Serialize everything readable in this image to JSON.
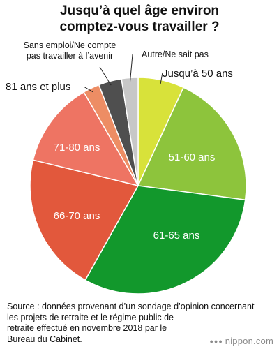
{
  "chart_data": {
    "type": "pie",
    "title_lines": [
      "Jusqu’à quel âge environ",
      "comptez-vous travailler ?"
    ],
    "slices": [
      {
        "label": "Jusqu’à 50 ans",
        "value": 7.0,
        "color": "#d8e23a"
      },
      {
        "label": "51-60 ans",
        "value": 20.5,
        "color": "#8dc43c"
      },
      {
        "label": "61-65 ans",
        "value": 31.5,
        "color": "#12982c"
      },
      {
        "label": "66-70 ans",
        "value": 21.0,
        "color": "#e2583c"
      },
      {
        "label": "71-80 ans",
        "value": 13.0,
        "color": "#ee7463"
      },
      {
        "label": "81 ans et plus",
        "value": 2.5,
        "color": "#ed8d64"
      },
      {
        "label": "Sans emploi/Ne compte pas travailler à l’avenir",
        "value": 3.5,
        "color": "#4f4f4f"
      },
      {
        "label": "Autre/Ne sait pas",
        "value": 2.5,
        "color": "#c7c7c7"
      }
    ]
  },
  "source": "Source : données provenant d’un sondage d’opinion concernant\nles projets de retraite et le régime public de\nretraite effectué en novembre 2018 par le\nBureau du Cabinet.",
  "logo": {
    "dots": "●●●",
    "text": "nippon.com"
  }
}
